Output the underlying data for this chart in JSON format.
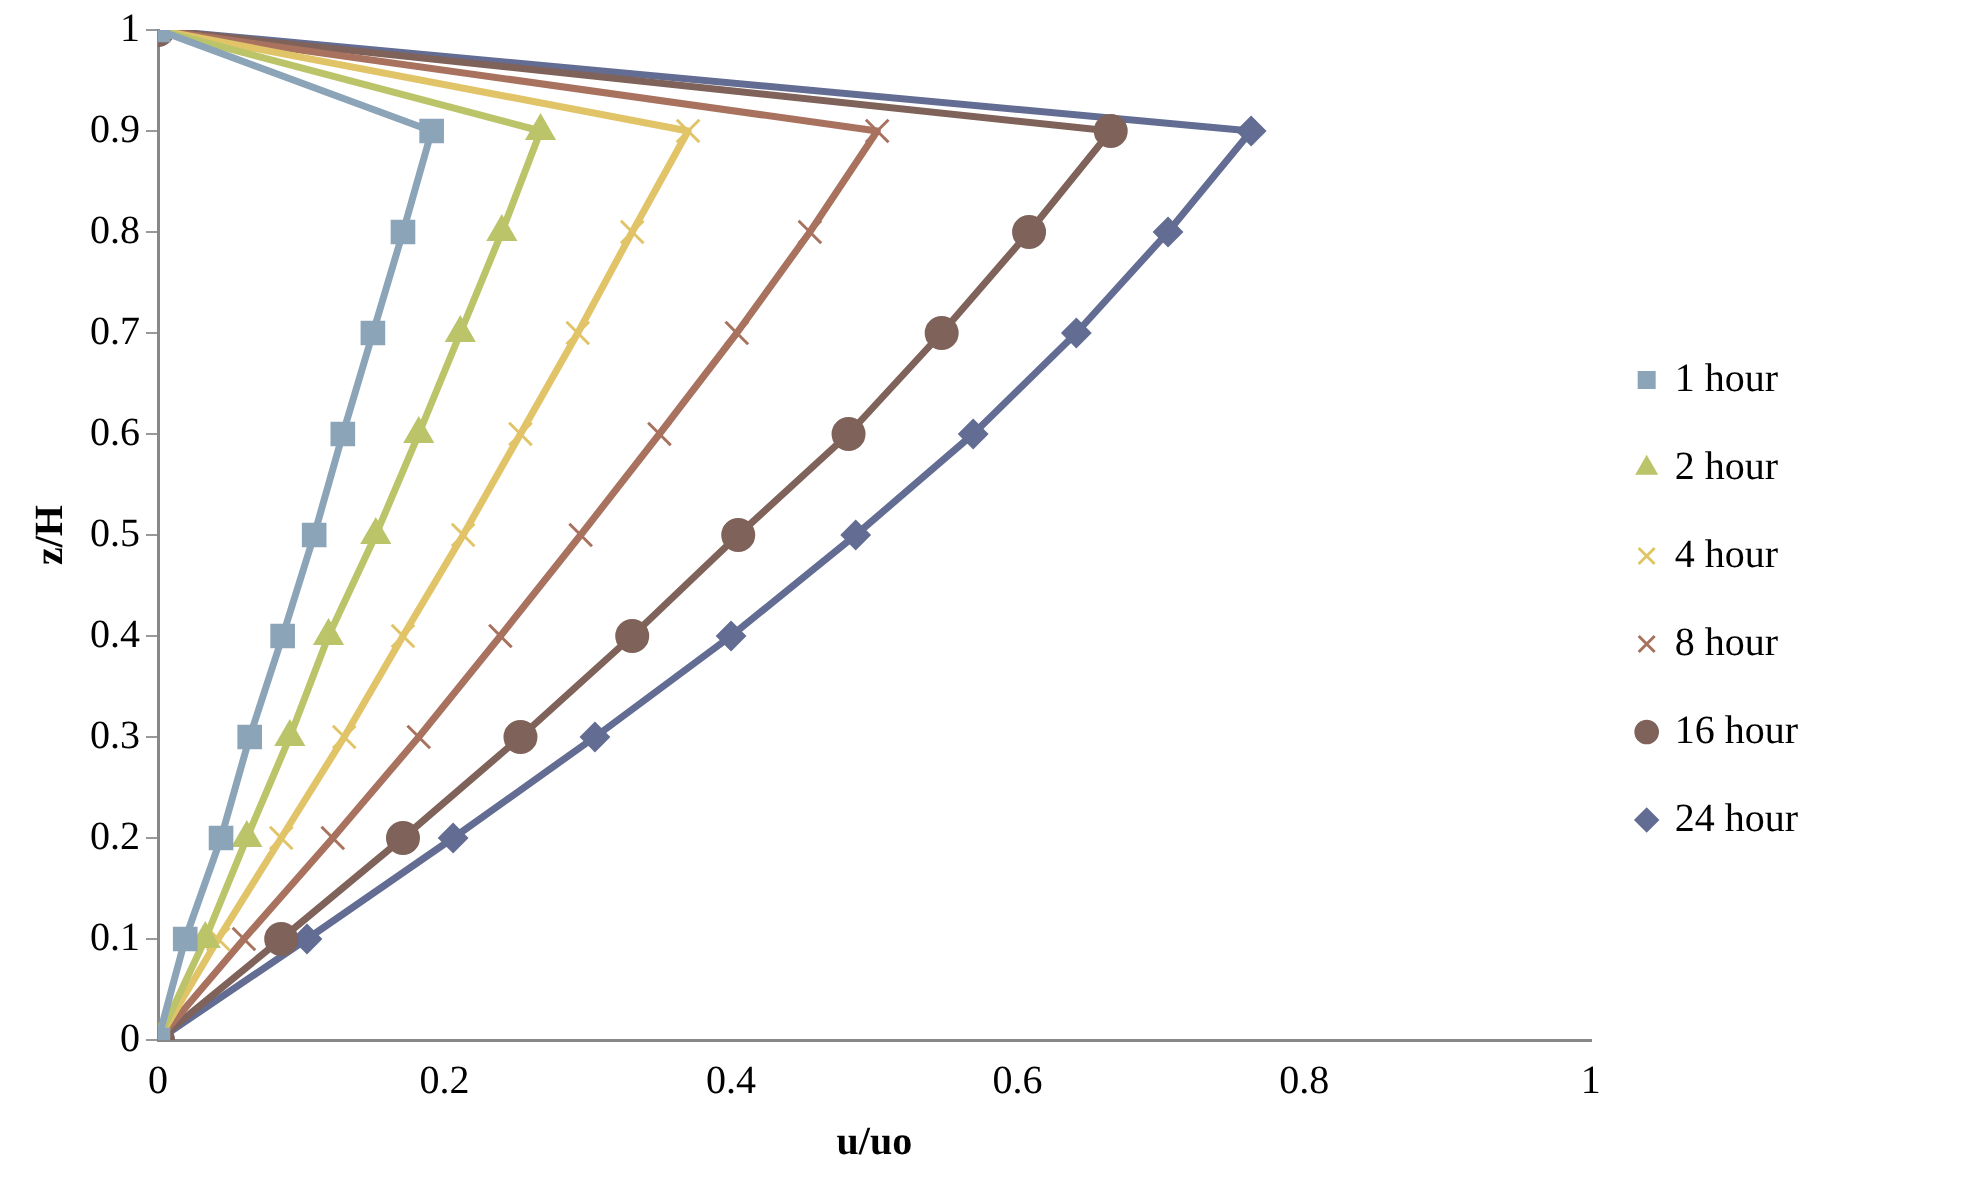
{
  "chart_data": {
    "type": "line",
    "xlabel": "u/uo",
    "ylabel": "z/H",
    "xlim": [
      0,
      1
    ],
    "xticks": [
      0,
      0.2,
      0.4,
      0.6,
      0.8,
      1
    ],
    "ylim": [
      0,
      1
    ],
    "yticks": [
      0,
      0.1,
      0.2,
      0.3,
      0.4,
      0.5,
      0.6,
      0.7,
      0.8,
      0.9,
      1
    ],
    "grid": false,
    "legend": "right",
    "line_style": "solid",
    "series": [
      {
        "name": "1 hour",
        "color": "#8ba4b8",
        "marker": "square",
        "x": [
          0,
          0.019,
          0.044,
          0.064,
          0.087,
          0.109,
          0.129,
          0.15,
          0.171,
          0.191,
          0
        ],
        "values": [
          0,
          0.1,
          0.2,
          0.3,
          0.4,
          0.5,
          0.6,
          0.7,
          0.8,
          0.9,
          1
        ]
      },
      {
        "name": "2 hour",
        "color": "#bcc46a",
        "marker": "triangle",
        "x": [
          0,
          0.033,
          0.062,
          0.092,
          0.119,
          0.152,
          0.182,
          0.211,
          0.24,
          0.267,
          0
        ],
        "values": [
          0,
          0.1,
          0.2,
          0.3,
          0.4,
          0.5,
          0.6,
          0.7,
          0.8,
          0.9,
          1
        ]
      },
      {
        "name": "4 hour",
        "color": "#e2c468",
        "marker": "cross",
        "x": [
          0,
          0.042,
          0.086,
          0.13,
          0.171,
          0.213,
          0.253,
          0.293,
          0.331,
          0.37,
          0
        ],
        "values": [
          0,
          0.1,
          0.2,
          0.3,
          0.4,
          0.5,
          0.6,
          0.7,
          0.8,
          0.9,
          1
        ]
      },
      {
        "name": "8 hour",
        "color": "#a8725f",
        "marker": "cross",
        "x": [
          0,
          0.06,
          0.122,
          0.182,
          0.239,
          0.295,
          0.35,
          0.404,
          0.455,
          0.502,
          0
        ],
        "values": [
          0,
          0.1,
          0.2,
          0.3,
          0.4,
          0.5,
          0.6,
          0.7,
          0.8,
          0.9,
          1
        ]
      },
      {
        "name": "16 hour",
        "color": "#7f6259",
        "marker": "circle",
        "x": [
          0,
          0.086,
          0.171,
          0.253,
          0.331,
          0.405,
          0.482,
          0.547,
          0.608,
          0.665,
          0
        ],
        "values": [
          0,
          0.1,
          0.2,
          0.3,
          0.4,
          0.5,
          0.6,
          0.7,
          0.8,
          0.9,
          1
        ]
      },
      {
        "name": "24 hour",
        "color": "#636d93",
        "marker": "diamond",
        "x": [
          0,
          0.104,
          0.206,
          0.305,
          0.4,
          0.487,
          0.569,
          0.641,
          0.705,
          0.763,
          0
        ],
        "values": [
          0,
          0.1,
          0.2,
          0.3,
          0.4,
          0.5,
          0.6,
          0.7,
          0.8,
          0.9,
          1
        ]
      }
    ]
  }
}
